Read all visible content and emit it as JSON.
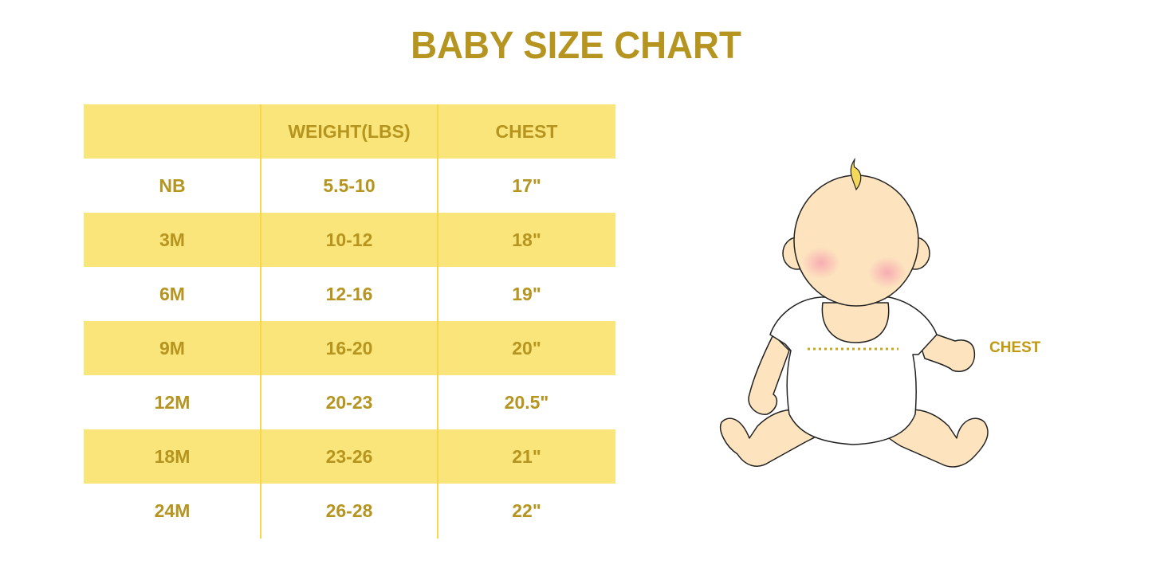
{
  "title": "BABY SIZE CHART",
  "table": {
    "headers": [
      "",
      "WEIGHT(LBS)",
      "CHEST"
    ],
    "rows": [
      [
        "NB",
        "5.5-10",
        "17\""
      ],
      [
        "3M",
        "10-12",
        "18\""
      ],
      [
        "6M",
        "12-16",
        "19\""
      ],
      [
        "9M",
        "16-20",
        "20\""
      ],
      [
        "12M",
        "20-23",
        "20.5\""
      ],
      [
        "18M",
        "23-26",
        "21\""
      ],
      [
        "24M",
        "26-28",
        "22\""
      ]
    ]
  },
  "illustration": {
    "chest_label": "CHEST"
  },
  "colors": {
    "text": "#b5951f",
    "band": "#fae57a",
    "skin": "#fde4bf",
    "blush": "#f7a6b0"
  }
}
